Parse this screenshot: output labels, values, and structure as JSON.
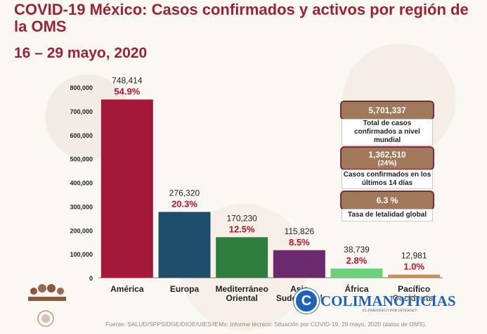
{
  "header": {
    "title": "COVID-19 México: Casos confirmados y activos por región de la OMS",
    "date_range": "16 – 29 mayo, 2020"
  },
  "chart_data": {
    "type": "bar",
    "title": "COVID-19 México: Casos confirmados y activos por región de la OMS",
    "subtitle": "16 – 29 mayo, 2020",
    "categories": [
      [
        "América"
      ],
      [
        "Europa"
      ],
      [
        "Mediterráneo",
        "Oriental"
      ],
      [
        "Asia",
        "Sudoriental"
      ],
      [
        "África"
      ],
      [
        "Pacífico",
        "Occidental"
      ]
    ],
    "values": [
      748414,
      276320,
      170230,
      115826,
      38739,
      12981
    ],
    "value_labels": [
      "748,414",
      "276,320",
      "170,230",
      "115,826",
      "38,739",
      "12,981"
    ],
    "percent_labels": [
      "54.9%",
      "20.3%",
      "12.5%",
      "8.5%",
      "2.8%",
      "1.0%"
    ],
    "colors": [
      "#a3193a",
      "#1f4e6d",
      "#2e7d3c",
      "#6b2a6b",
      "#6fd07c",
      "#c98c5a"
    ],
    "percent_color": "#c0102a",
    "yticks": [
      0,
      100000,
      200000,
      300000,
      400000,
      500000,
      600000,
      700000,
      800000
    ],
    "ytick_labels": [
      "0",
      "100,000",
      "200,000",
      "300,000",
      "400,000",
      "500,000",
      "600,000",
      "700,000",
      "800,000"
    ],
    "ylim": [
      0,
      800000
    ],
    "grid": false
  },
  "summary": {
    "total_value": "5,701,337",
    "total_label": "Total de casos confirmados a nivel mundial",
    "recent_value": "1,362,510",
    "recent_pct": "(24%)",
    "recent_label": "Casos confirmados en los últimos 14 días",
    "lethality_value": "6.3 %",
    "lethality_label": "Tasa de letalidad global"
  },
  "footer": {
    "source": "Fuente: SALUD/SPPS/DGE/DIOE/UIES/IEMx: Informe técnico: Situación por COVID-19, 29 mayo, 2020 (datos de OMS)."
  },
  "watermark": {
    "initial": "C",
    "name": "COLIMANOTICIAS",
    "tagline": "EL PERIÓDICO POR INTERNET"
  },
  "colors": {
    "accent": "#9b2335",
    "box_fill": "#a0785a",
    "box_border": "#7a2c3a",
    "watermark": "#1d62b8"
  }
}
